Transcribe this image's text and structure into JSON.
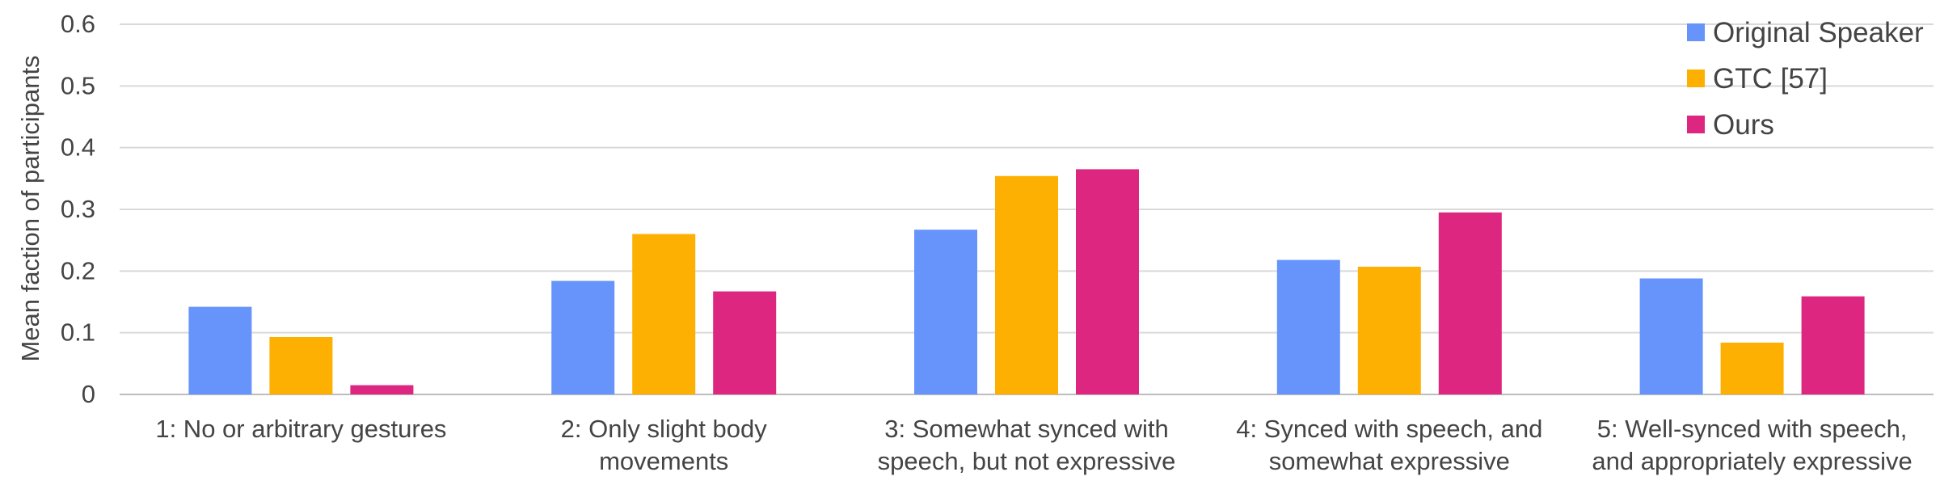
{
  "chart_data": {
    "type": "bar",
    "title": "",
    "xlabel": "",
    "ylabel": "Mean faction of participants",
    "ylim": [
      0,
      0.6
    ],
    "yticks": [
      0,
      0.1,
      0.2,
      0.3,
      0.4,
      0.5,
      0.6
    ],
    "ytick_labels": [
      "0",
      "0.1",
      "0.2",
      "0.3",
      "0.4",
      "0.5",
      "0.6"
    ],
    "grid": true,
    "legend_position": "top-right",
    "categories": [
      [
        "1: No or arbitrary gestures"
      ],
      [
        "2: Only slight body",
        "movements"
      ],
      [
        "3: Somewhat synced with",
        "speech, but not expressive"
      ],
      [
        "4: Synced with speech, and",
        "somewhat expressive"
      ],
      [
        "5: Well-synced with speech,",
        "and appropriately expressive"
      ]
    ],
    "series": [
      {
        "name": "Original Speaker",
        "color": "#6694fb",
        "values": [
          0.142,
          0.184,
          0.267,
          0.218,
          0.188
        ]
      },
      {
        "name": "GTC [57]",
        "color": "#fdb002",
        "values": [
          0.093,
          0.26,
          0.354,
          0.207,
          0.084
        ]
      },
      {
        "name": "Ours",
        "color": "#dc267f",
        "values": [
          0.015,
          0.167,
          0.365,
          0.295,
          0.159
        ]
      }
    ]
  }
}
